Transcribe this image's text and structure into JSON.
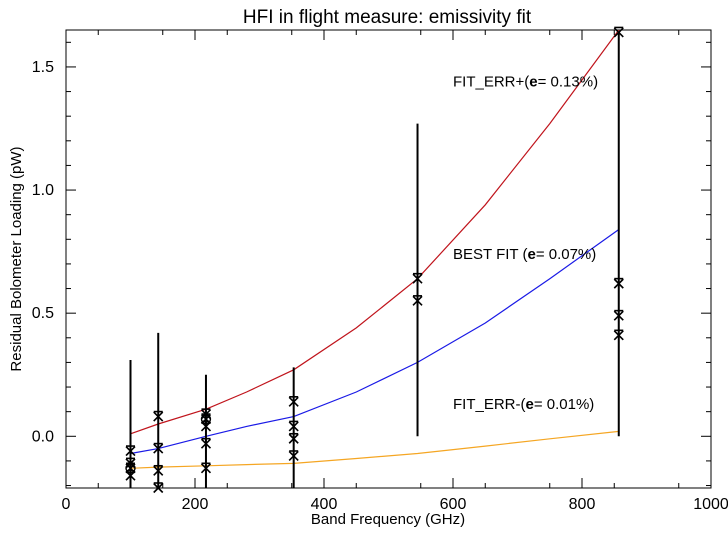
{
  "chart_data": {
    "type": "scatter",
    "title": "HFI in flight measure: emissivity fit",
    "xlabel": "Band Frequency (GHz)",
    "ylabel": "Residual Bolometer Loading (pW)",
    "xlim": [
      0,
      1000
    ],
    "ylim": [
      -0.21,
      1.65
    ],
    "x_ticks": [
      0,
      200,
      400,
      600,
      800,
      1000
    ],
    "x_tick_labels": [
      "0",
      "200",
      "400",
      "600",
      "800",
      "1000"
    ],
    "y_ticks": [
      0.0,
      0.5,
      1.0,
      1.5
    ],
    "y_tick_labels": [
      "0.0",
      "0.5",
      "1.0",
      "1.5"
    ],
    "grid": false,
    "measurements": [
      {
        "x": 100,
        "y": [
          -0.06,
          -0.11,
          -0.13,
          -0.16
        ],
        "yerr_top": 0.31
      },
      {
        "x": 143,
        "y": [
          0.08,
          -0.05,
          -0.14,
          -0.21
        ],
        "yerr_top": 0.42
      },
      {
        "x": 217,
        "y": [
          0.09,
          0.07,
          0.04,
          -0.03,
          -0.13
        ],
        "yerr_top": 0.25
      },
      {
        "x": 353,
        "y": [
          0.14,
          0.04,
          -0.01,
          -0.08
        ],
        "yerr_top": 0.28
      },
      {
        "x": 545,
        "y": [
          0.64,
          0.55
        ],
        "yerr_top": 1.27,
        "yerr_bottom": 0.0
      },
      {
        "x": 857,
        "y": [
          1.64,
          0.62,
          0.49,
          0.41
        ],
        "yerr_top": 1.64,
        "yerr_bottom": 0.0
      }
    ],
    "series": [
      {
        "label": "FIT_ERR+(",
        "label_bold": "e",
        "label_suffix": "= 0.13%)",
        "color": "#c0141c",
        "x": [
          100,
          143,
          217,
          280,
          353,
          450,
          545,
          650,
          750,
          857
        ],
        "y": [
          0.01,
          0.05,
          0.11,
          0.18,
          0.27,
          0.44,
          0.64,
          0.94,
          1.27,
          1.65
        ]
      },
      {
        "label": "BEST FIT (",
        "label_bold": "e",
        "label_suffix": "= 0.07%)",
        "color": "#1a1ae6",
        "x": [
          100,
          143,
          217,
          280,
          353,
          450,
          545,
          650,
          750,
          857
        ],
        "y": [
          -0.07,
          -0.05,
          0.0,
          0.04,
          0.08,
          0.18,
          0.3,
          0.46,
          0.64,
          0.84
        ]
      },
      {
        "label": "FIT_ERR-(",
        "label_bold": "e",
        "label_suffix": "= 0.01%)",
        "color": "#f5a623",
        "x": [
          100,
          143,
          217,
          280,
          353,
          450,
          545,
          650,
          750,
          857
        ],
        "y": [
          -0.13,
          -0.125,
          -0.12,
          -0.115,
          -0.11,
          -0.09,
          -0.07,
          -0.04,
          -0.01,
          0.02
        ]
      }
    ]
  }
}
